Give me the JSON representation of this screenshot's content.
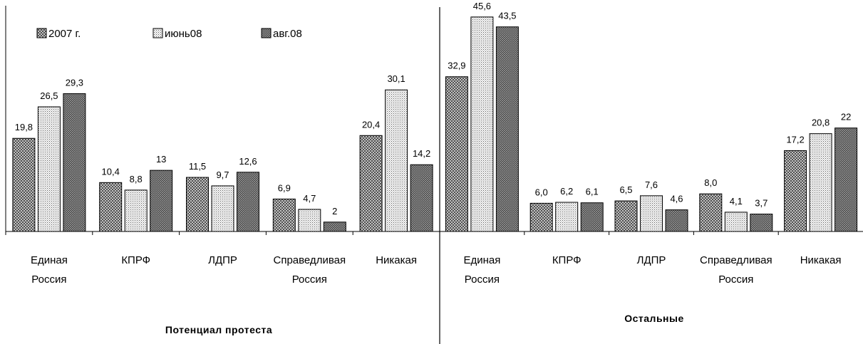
{
  "chart_data": {
    "type": "bar",
    "legend_position": "top-left",
    "series_legend": [
      "2007 г.",
      "июнь08",
      "авг.08"
    ],
    "panels": [
      {
        "group_label": "Потенциал протеста",
        "categories": [
          [
            "Единая",
            "Россия"
          ],
          [
            "КПРФ"
          ],
          [
            "ЛДПР"
          ],
          [
            "Справедливая",
            "Россия"
          ],
          [
            "Никакая"
          ]
        ],
        "series": [
          {
            "name": "2007 г.",
            "values": [
              19.8,
              10.4,
              11.5,
              6.9,
              20.4
            ],
            "labels": [
              "19,8",
              "10,4",
              "11,5",
              "6,9",
              "20,4"
            ]
          },
          {
            "name": "июнь08",
            "values": [
              26.5,
              8.8,
              9.7,
              4.7,
              30.1
            ],
            "labels": [
              "26,5",
              "8,8",
              "9,7",
              "4,7",
              "30,1"
            ]
          },
          {
            "name": "авг.08",
            "values": [
              29.3,
              13,
              12.6,
              2,
              14.2
            ],
            "labels": [
              "29,3",
              "13",
              "12,6",
              "2",
              "14,2"
            ]
          }
        ]
      },
      {
        "group_label": "Остальные",
        "categories": [
          [
            "Единая",
            "Россия"
          ],
          [
            "КПРФ"
          ],
          [
            "ЛДПР"
          ],
          [
            "Справедливая",
            "Россия"
          ],
          [
            "Никакая"
          ]
        ],
        "series": [
          {
            "name": "2007 г.",
            "values": [
              32.9,
              6.0,
              6.5,
              8.0,
              17.2
            ],
            "labels": [
              "32,9",
              "6,0",
              "6,5",
              "8,0",
              "17,2"
            ]
          },
          {
            "name": "июнь08",
            "values": [
              45.6,
              6.2,
              7.6,
              4.1,
              20.8
            ],
            "labels": [
              "45,6",
              "6,2",
              "7,6",
              "4,1",
              "20,8"
            ]
          },
          {
            "name": "авг.08",
            "values": [
              43.5,
              6.1,
              4.6,
              3.7,
              22
            ],
            "labels": [
              "43,5",
              "6,1",
              "4,6",
              "3,7",
              "22"
            ]
          }
        ]
      }
    ],
    "ylim": [
      0,
      48
    ],
    "grid": false
  }
}
